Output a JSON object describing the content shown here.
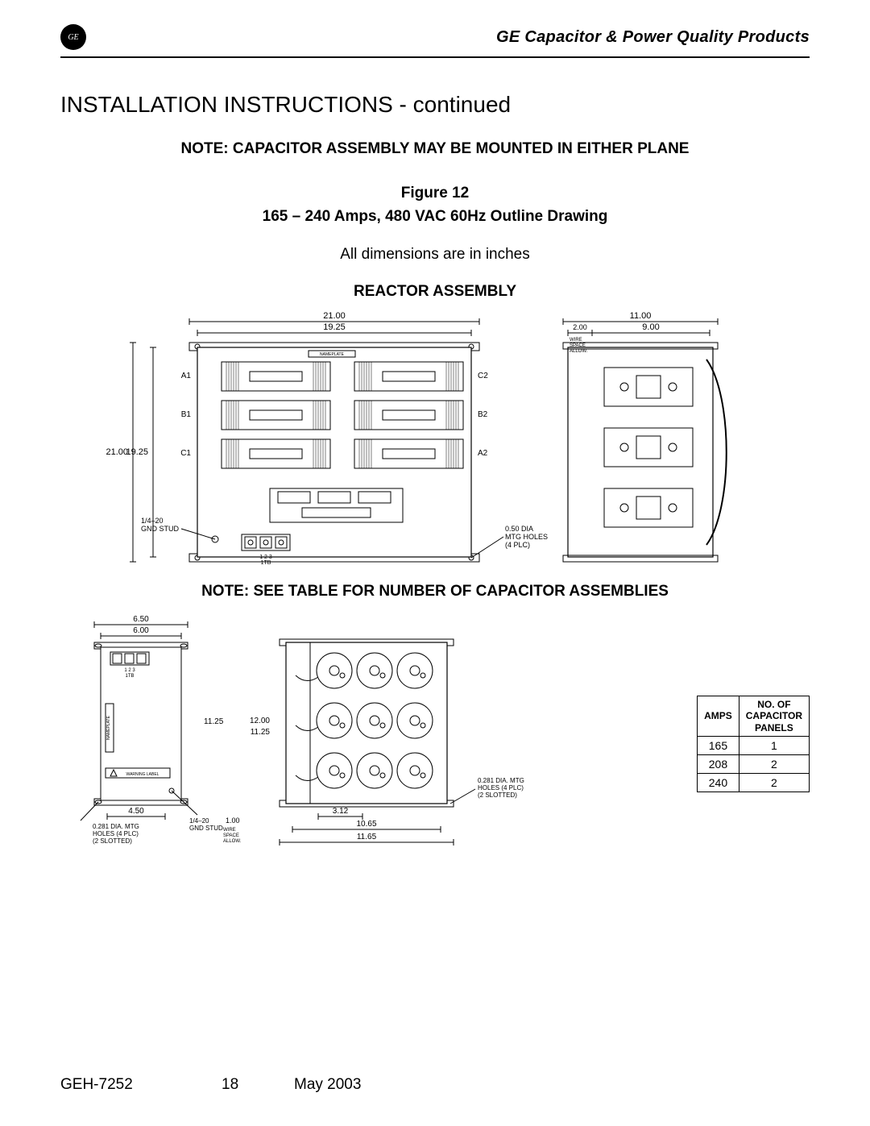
{
  "header": {
    "logo_text": "GE",
    "product_line": "GE Capacitor & Power Quality Products"
  },
  "section_title": "INSTALLATION INSTRUCTIONS - continued",
  "note_mounting": "NOTE: CAPACITOR ASSEMBLY MAY BE MOUNTED IN EITHER PLANE",
  "figure": {
    "label": "Figure 12",
    "caption": "165 – 240 Amps, 480 VAC 60Hz Outline Drawing"
  },
  "dimensions_note": "All dimensions are in inches",
  "reactor_heading": "REACTOR ASSEMBLY",
  "reactor_drawing": {
    "type": "engineering-outline",
    "stroke": "#000000",
    "fill": "#ffffff",
    "font_size_dim": 11,
    "front": {
      "outer_w": 21.0,
      "outer_h": 21.0,
      "inner_w": 19.25,
      "inner_h": 19.25,
      "terminals_left": [
        "A1",
        "B1",
        "C1"
      ],
      "terminals_right": [
        "C2",
        "B2",
        "A2"
      ],
      "gnd_stud": "1/4–20\nGND STUD",
      "tb_label": "1TB",
      "tb_nums": "1   2   3",
      "mtg_holes": "0.50 DIA\nMTG HOLES\n(4 PLC)",
      "nameplate": "NAMEPLATE"
    },
    "side": {
      "width": 11.0,
      "mount_w": 9.0,
      "wire_space": "2.00",
      "wire_label": "WIRE\nSPACE\nALLOW."
    }
  },
  "note_table": "NOTE: SEE TABLE FOR NUMBER OF CAPACITOR ASSEMBLIES",
  "capacitor_drawing": {
    "type": "engineering-outline",
    "stroke": "#000000",
    "fill": "#ffffff",
    "font_size_dim": 10,
    "side": {
      "top_w": 6.5,
      "panel_w": 6.0,
      "bottom_w": 4.5,
      "height": 11.25,
      "tb_label": "1TB",
      "tb_nums": "1  2  3",
      "nameplate": "NAMEPLATE",
      "warning": "WARNING LABEL",
      "holes": "0.281 DIA. MTG\nHOLES (4 PLC)\n(2 SLOTTED)",
      "gnd_stud": "1/4–20\nGND STUD",
      "wire_space": "1.00",
      "wire_label": "WIRE\nSPACE\nALLOW."
    },
    "front": {
      "height": 12.0,
      "cap_h": 11.25,
      "width": 11.65,
      "inner_w": 10.65,
      "cap_spacing": 3.12,
      "holes": "0.281 DIA. MTG\nHOLES (4 PLC)\n(2 SLOTTED)",
      "cap_rows": 3,
      "cap_cols": 3
    }
  },
  "table": {
    "headers": [
      "AMPS",
      "NO. OF\nCAPACITOR\nPANELS"
    ],
    "rows": [
      [
        "165",
        "1"
      ],
      [
        "208",
        "2"
      ],
      [
        "240",
        "2"
      ]
    ]
  },
  "footer": {
    "doc_id": "GEH-7252",
    "page": "18",
    "date": "May 2003"
  },
  "colors": {
    "text": "#000000",
    "background": "#ffffff",
    "rule": "#000000"
  }
}
